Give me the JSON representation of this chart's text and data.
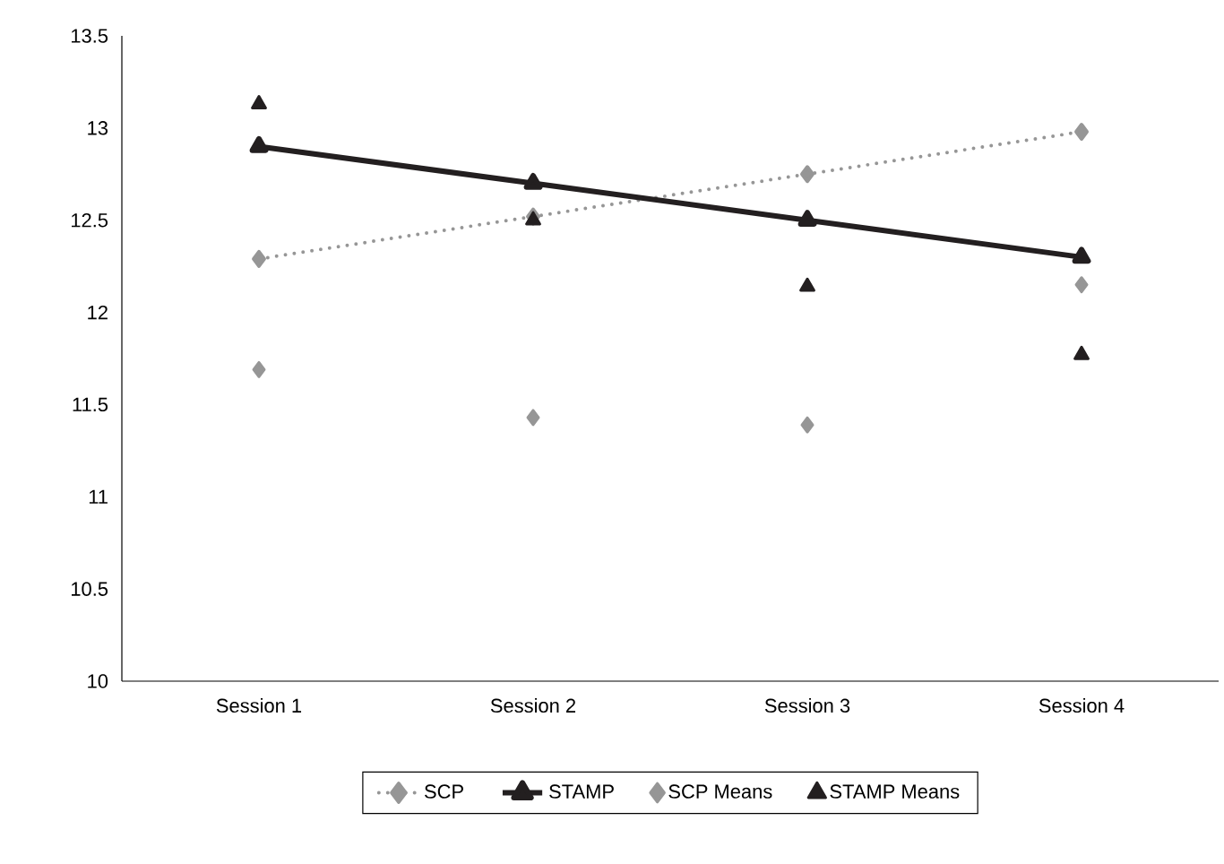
{
  "chart_data": {
    "type": "line",
    "categories": [
      "Session 1",
      "Session 2",
      "Session 3",
      "Session 4"
    ],
    "series": [
      {
        "name": "SCP",
        "color": "#969696",
        "marker": "diamond",
        "line_style": "dotted",
        "values": [
          12.29,
          12.52,
          12.75,
          12.98
        ]
      },
      {
        "name": "STAMP",
        "color": "#231f20",
        "marker": "triangle",
        "line_style": "solid",
        "values": [
          12.9,
          12.7,
          12.5,
          12.3
        ]
      },
      {
        "name": "SCP Means",
        "type": "scatter",
        "color": "#969696",
        "marker": "diamond",
        "values": [
          11.69,
          11.43,
          11.39,
          12.15
        ]
      },
      {
        "name": "STAMP Means",
        "type": "scatter",
        "color": "#231f20",
        "marker": "triangle",
        "values": [
          13.13,
          12.5,
          12.14,
          11.77
        ]
      }
    ],
    "ylim": [
      10,
      13.5
    ],
    "yticks": [
      10,
      10.5,
      11,
      11.5,
      12,
      12.5,
      13,
      13.5
    ],
    "grid": false,
    "legend": "bottom"
  }
}
